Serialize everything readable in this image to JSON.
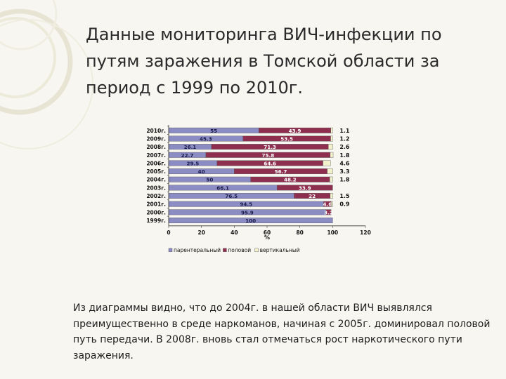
{
  "slide": {
    "title": "Данные мониторинга ВИЧ-инфекции по путям заражения в Томской области за период с 1999 по 2010г.",
    "caption": "Из диаграммы видно, что до 2004г. в нашей области ВИЧ выявлялся преимущественно в среде наркоманов, начиная с 2005г. доминировал половой путь передачи. В 2008г. вновь стал отмечаться рост наркотического пути заражения."
  },
  "chart_data": {
    "type": "bar",
    "orientation": "horizontal",
    "stacked": true,
    "categories": [
      "2010г.",
      "2009г.",
      "2008г.",
      "2007г.",
      "2006г.",
      "2005г.",
      "2004г.",
      "2003г.",
      "2002г.",
      "2001г.",
      "2000г.",
      "1999г."
    ],
    "series": [
      {
        "name": "парентеральный",
        "color": "#8c8cc4",
        "values": [
          55,
          45.3,
          26.1,
          22.7,
          29.5,
          40,
          50,
          66.1,
          76.5,
          94.5,
          95.9,
          100
        ]
      },
      {
        "name": "половой",
        "color": "#8f2f4f",
        "values": [
          43.9,
          53.5,
          71.3,
          75.8,
          64.6,
          56.7,
          48.2,
          33.9,
          22,
          4.6,
          3.2,
          0
        ]
      },
      {
        "name": "вертикальный",
        "color": "#f2f1cc",
        "values": [
          1.1,
          1.2,
          2.6,
          1.8,
          4.6,
          3.3,
          1.8,
          0,
          1.5,
          0.9,
          0,
          0
        ]
      }
    ],
    "bar_labels": [
      [
        "55",
        "43.9",
        "1.1"
      ],
      [
        "45.3",
        "53.5",
        "1.2"
      ],
      [
        "26.1",
        "71.3",
        "2.6"
      ],
      [
        "22.7",
        "75.8",
        "1.8"
      ],
      [
        "29.5",
        "64.6",
        "4.6"
      ],
      [
        "40",
        "56.7",
        "3.3"
      ],
      [
        "50",
        "48.2",
        "1.8"
      ],
      [
        "66.1",
        "33.9",
        ""
      ],
      [
        "76.5",
        "22",
        "1.5"
      ],
      [
        "94.5",
        "4.6",
        "0.9"
      ],
      [
        "95.9",
        "3.2",
        ""
      ],
      [
        "100",
        "",
        ""
      ]
    ],
    "xlabel": "%",
    "xlim": [
      0,
      120
    ],
    "xticks": [
      0,
      20,
      40,
      60,
      80,
      100,
      120
    ],
    "legend_position": "bottom",
    "grid": false
  }
}
